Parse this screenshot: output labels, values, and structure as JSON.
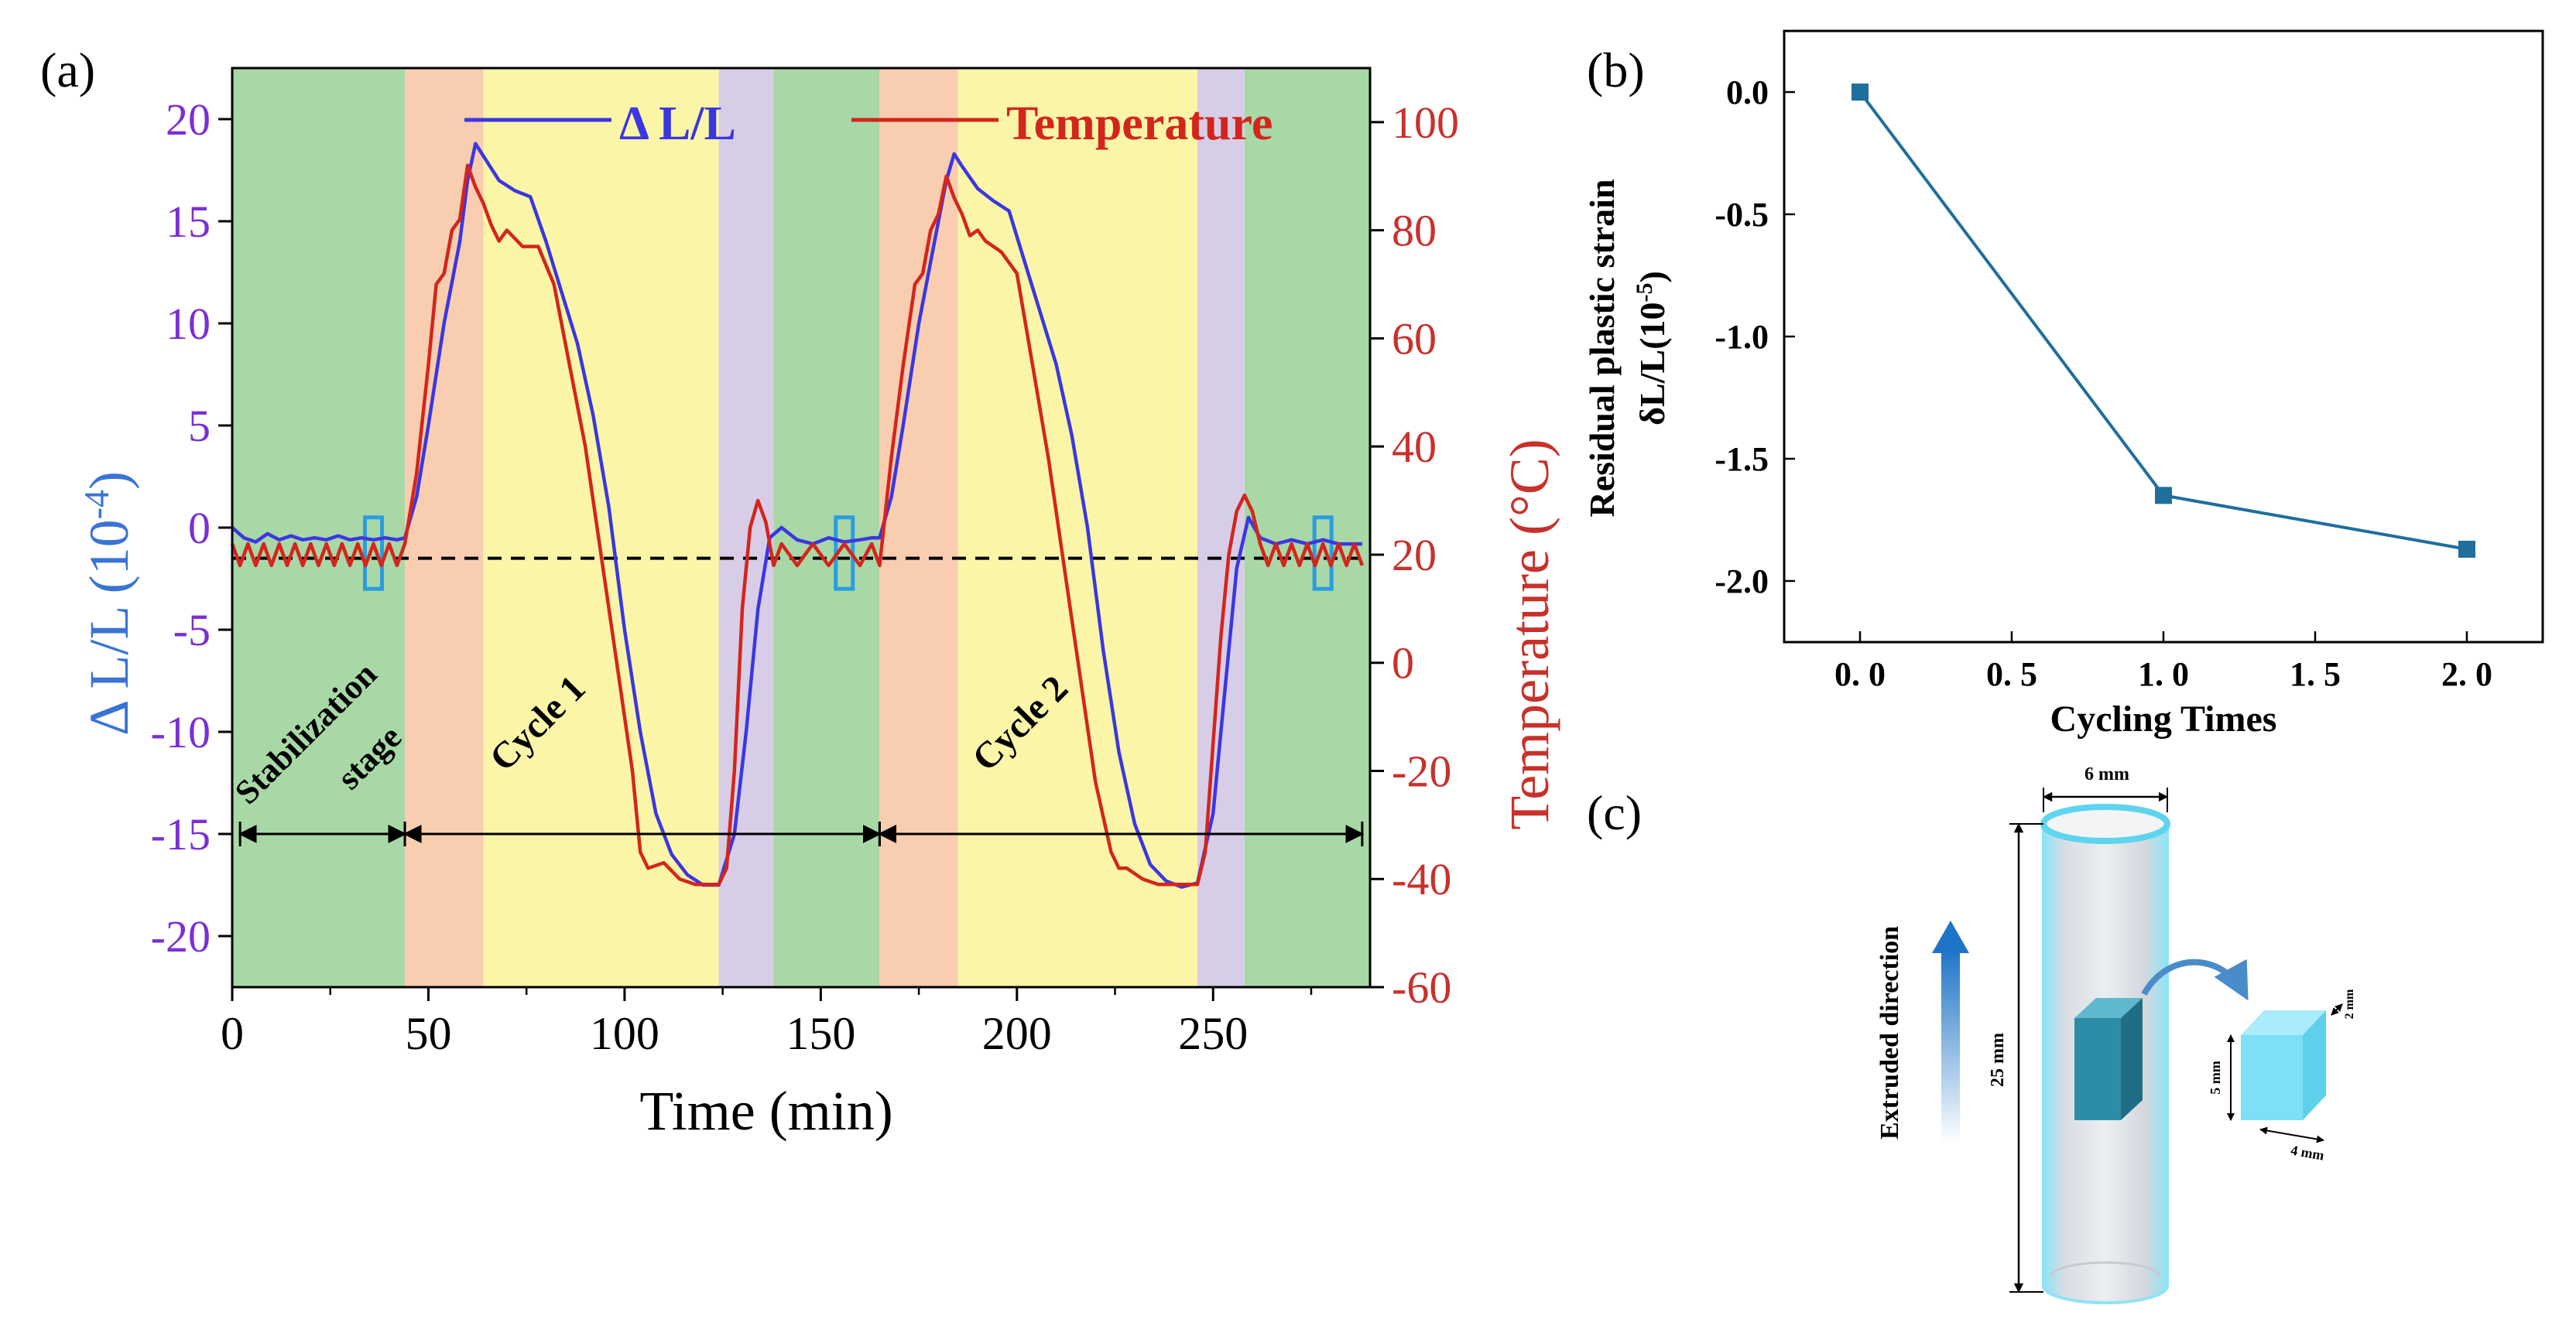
{
  "chart_data": [
    {
      "panel": "(a)",
      "type": "line",
      "xlabel": "Time (min)",
      "ylabel_left": "Δ L/L (10",
      "ylabel_left_exp": "-4",
      "ylabel_left_close": ")",
      "ylabel_right": "Temperature (°C)",
      "xlim": [
        0,
        290
      ],
      "ylim_left": [
        -22.5,
        22.5
      ],
      "ylim_right": [
        -60,
        110
      ],
      "x_ticks": [
        "0",
        "50",
        "100",
        "150",
        "200",
        "250"
      ],
      "x_tick_values": [
        0,
        50,
        100,
        150,
        200,
        250
      ],
      "y_left_ticks": [
        "20",
        "15",
        "10",
        "5",
        "0",
        "-5",
        "-10",
        "-15",
        "-20"
      ],
      "y_left_tick_values": [
        20,
        15,
        10,
        5,
        0,
        -5,
        -10,
        -15,
        -20
      ],
      "y_right_ticks": [
        "100",
        "80",
        "60",
        "40",
        "20",
        "0",
        "-20",
        "-40",
        "-60"
      ],
      "y_right_tick_values": [
        100,
        80,
        60,
        40,
        20,
        0,
        -20,
        -40,
        -60
      ],
      "legend": [
        {
          "label": "Δ L/L",
          "color": "#3b37e0"
        },
        {
          "label": "Temperature",
          "color": "#d4251c"
        }
      ],
      "bands": [
        {
          "x0": 0,
          "x1": 44,
          "color": "#a8d8a6"
        },
        {
          "x0": 44,
          "x1": 64,
          "color": "#f8cdb0"
        },
        {
          "x0": 64,
          "x1": 124,
          "color": "#fbf6a7"
        },
        {
          "x0": 124,
          "x1": 138,
          "color": "#d7cde6"
        },
        {
          "x0": 138,
          "x1": 165,
          "color": "#a8d8a6"
        },
        {
          "x0": 165,
          "x1": 185,
          "color": "#f8cdb0"
        },
        {
          "x0": 185,
          "x1": 246,
          "color": "#fbf6a7"
        },
        {
          "x0": 246,
          "x1": 258,
          "color": "#d7cde6"
        },
        {
          "x0": 258,
          "x1": 290,
          "color": "#a8d8a6"
        }
      ],
      "reference_line_y_left": -1.5,
      "highlight_boxes_x": [
        36,
        156,
        278
      ],
      "stage_spans": [
        {
          "label": "Stabilization",
          "label2": "stage",
          "x0": 2,
          "x1": 44
        },
        {
          "label": "Cycle 1",
          "x0": 44,
          "x1": 165
        },
        {
          "label": "Cycle 2",
          "x0": 165,
          "x1": 288
        }
      ],
      "stage_arrow_y_left": -15,
      "series": [
        {
          "name": "Δ L/L",
          "axis": "left",
          "color": "#3b37e0",
          "x": [
            0,
            3,
            6,
            9,
            12,
            15,
            18,
            21,
            24,
            27,
            30,
            33,
            36,
            39,
            42,
            44,
            47,
            50,
            54,
            58,
            60,
            62,
            64,
            68,
            72,
            76,
            80,
            84,
            88,
            92,
            96,
            100,
            104,
            108,
            112,
            116,
            120,
            124,
            128,
            131,
            134,
            137,
            140,
            144,
            148,
            152,
            156,
            160,
            163,
            165,
            168,
            171,
            175,
            179,
            182,
            184,
            186,
            190,
            194,
            198,
            202,
            206,
            210,
            214,
            218,
            222,
            226,
            230,
            234,
            238,
            242,
            246,
            250,
            253,
            256,
            259,
            262,
            266,
            270,
            274,
            278,
            282,
            286,
            288
          ],
          "y": [
            0,
            -0.5,
            -0.7,
            -0.3,
            -0.6,
            -0.4,
            -0.6,
            -0.5,
            -0.6,
            -0.4,
            -0.6,
            -0.5,
            -0.6,
            -0.5,
            -0.6,
            -0.5,
            1.5,
            5,
            10,
            14,
            17,
            18.8,
            18.2,
            17,
            16.5,
            16.2,
            14,
            11.5,
            9,
            5.5,
            1,
            -5,
            -10,
            -14,
            -16,
            -17,
            -17.5,
            -17.5,
            -15,
            -10,
            -4,
            -0.5,
            0,
            -0.6,
            -0.8,
            -0.5,
            -0.7,
            -0.6,
            -0.5,
            -0.5,
            1.5,
            5,
            10,
            14,
            17,
            18.3,
            17.7,
            16.6,
            16,
            15.5,
            13,
            10.5,
            8,
            4.5,
            0,
            -6,
            -11,
            -14.5,
            -16.5,
            -17.3,
            -17.6,
            -17.4,
            -14,
            -8,
            -2,
            0.5,
            -0.5,
            -0.8,
            -0.6,
            -0.8,
            -0.6,
            -0.8,
            -0.8,
            -0.8
          ]
        },
        {
          "name": "Temperature",
          "axis": "right",
          "color": "#d4251c",
          "x": [
            0,
            2,
            4,
            6,
            8,
            10,
            12,
            14,
            16,
            18,
            20,
            22,
            24,
            26,
            28,
            30,
            32,
            34,
            36,
            38,
            40,
            42,
            44,
            47,
            50,
            52,
            54,
            56,
            58,
            60,
            62,
            64,
            66,
            68,
            70,
            74,
            78,
            82,
            86,
            90,
            94,
            98,
            102,
            104,
            106,
            110,
            114,
            118,
            122,
            124,
            126,
            128,
            130,
            132,
            134,
            136,
            138,
            140,
            144,
            148,
            152,
            156,
            160,
            163,
            165,
            168,
            171,
            174,
            176,
            178,
            180,
            182,
            184,
            186,
            188,
            190,
            192,
            196,
            200,
            204,
            208,
            212,
            216,
            220,
            224,
            226,
            228,
            232,
            236,
            240,
            244,
            246,
            248,
            250,
            252,
            254,
            256,
            258,
            260,
            262,
            264,
            266,
            268,
            270,
            272,
            274,
            276,
            278,
            280,
            282,
            284,
            286,
            288
          ],
          "y": [
            22,
            18,
            22,
            18,
            22,
            18,
            22,
            18,
            22,
            18,
            22,
            18,
            22,
            18,
            22,
            18,
            22,
            18,
            22,
            18,
            22,
            18,
            22,
            35,
            55,
            70,
            72,
            80,
            82,
            92,
            88,
            85,
            81,
            78,
            80,
            77,
            77,
            70,
            55,
            40,
            20,
            0,
            -20,
            -35,
            -38,
            -37,
            -40,
            -41,
            -41,
            -41,
            -38,
            -20,
            10,
            25,
            30,
            26,
            18,
            22,
            18,
            22,
            18,
            22,
            18,
            22,
            18,
            38,
            55,
            70,
            72,
            80,
            83,
            90,
            86,
            83,
            79,
            80,
            78,
            76,
            72,
            55,
            38,
            18,
            -2,
            -22,
            -35,
            -38,
            -38,
            -40,
            -41,
            -41,
            -41,
            -41,
            -35,
            -15,
            5,
            20,
            28,
            31,
            28,
            22,
            18,
            22,
            18,
            22,
            18,
            22,
            18,
            22,
            18,
            22,
            18,
            22,
            18
          ]
        }
      ]
    },
    {
      "panel": "(b)",
      "type": "line",
      "xlabel": "Cycling Times",
      "ylabel_line1": "Residual plastic strain",
      "ylabel_line2": "δL/L(10",
      "ylabel_line2_exp": "-5",
      "ylabel_line2_close": ")",
      "xlim": [
        -0.25,
        2.25
      ],
      "ylim": [
        -2.25,
        0.25
      ],
      "x_ticks": [
        "0. 0",
        "0. 5",
        "1. 0",
        "1. 5",
        "2. 0"
      ],
      "x_tick_values": [
        0,
        0.5,
        1,
        1.5,
        2
      ],
      "y_ticks": [
        "0.0",
        "-0.5",
        "-1.0",
        "-1.5",
        "-2.0"
      ],
      "y_tick_values": [
        0,
        -0.5,
        -1,
        -1.5,
        -2
      ],
      "color": "#1f6e9c",
      "x": [
        0,
        1,
        2
      ],
      "y": [
        0,
        -1.65,
        -1.87
      ]
    }
  ],
  "panel_c": {
    "label": "(c)",
    "direction_label": "Extruded direction",
    "dim_width": "6 mm",
    "dim_height": "25 mm",
    "sample_h": "5 mm",
    "sample_w": "4 mm",
    "sample_d": "2 mm"
  }
}
